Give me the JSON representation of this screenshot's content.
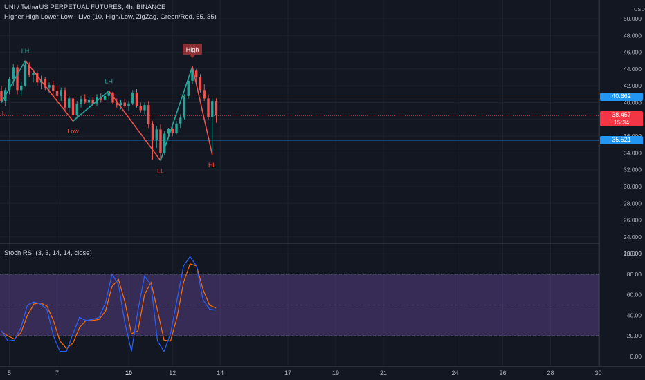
{
  "header": {
    "symbol": "UNI / TetherUS PERPETUAL FUTURES, 4h, BINANCE",
    "indicator": "Higher High Lower Low - Live (10, High/Low, ZigZag, Green/Red, 65, 35)"
  },
  "price_axis": {
    "unit": "USDT",
    "ticks": [
      "50.000",
      "48.000",
      "46.000",
      "44.000",
      "42.000",
      "40.000",
      "38.000",
      "36.000",
      "34.000",
      "32.000",
      "30.000",
      "28.000",
      "26.000",
      "24.000",
      "22.000"
    ],
    "tick_values": [
      50,
      48,
      46,
      44,
      42,
      40,
      38,
      36,
      34,
      32,
      30,
      28,
      26,
      24,
      22
    ],
    "tags": [
      {
        "label": "40.662",
        "value": 40.662,
        "color": "#2196f3"
      },
      {
        "label": "38.457",
        "sub": "15:34",
        "value": 38.457,
        "color": "#f23645"
      },
      {
        "label": "35.521",
        "value": 35.521,
        "color": "#2196f3"
      }
    ]
  },
  "lines": {
    "resistance": 40.662,
    "support": 35.521,
    "last_price": 38.457
  },
  "time_axis": {
    "labels": [
      {
        "text": "5",
        "bold": false,
        "i": 2
      },
      {
        "text": "7",
        "bold": false,
        "i": 14
      },
      {
        "text": "10",
        "bold": true,
        "i": 32
      },
      {
        "text": "12",
        "bold": false,
        "i": 43
      },
      {
        "text": "14",
        "bold": false,
        "i": 55
      },
      {
        "text": "17",
        "bold": false,
        "i": 72
      },
      {
        "text": "19",
        "bold": false,
        "i": 84
      },
      {
        "text": "21",
        "bold": false,
        "i": 96
      },
      {
        "text": "24",
        "bold": false,
        "i": 114
      },
      {
        "text": "26",
        "bold": false,
        "i": 126
      },
      {
        "text": "28",
        "bold": false,
        "i": 138
      },
      {
        "text": "30",
        "bold": false,
        "i": 150
      }
    ]
  },
  "zigzag": {
    "green": "#26a69a",
    "red": "#ef5350",
    "points": [
      {
        "i": 0,
        "v": 40.0,
        "label": "HL",
        "pos": "below",
        "color": "#ef5350",
        "badge": false
      },
      {
        "i": 6,
        "v": 45.0,
        "label": "LH",
        "pos": "above",
        "color": "#26a69a",
        "badge": false
      },
      {
        "i": 18,
        "v": 37.8,
        "label": "Low",
        "pos": "below",
        "color": "#ef5350",
        "badge": false
      },
      {
        "i": 27,
        "v": 41.4,
        "label": "LH",
        "pos": "above",
        "color": "#26a69a",
        "badge": false
      },
      {
        "i": 40,
        "v": 33.1,
        "label": "LL",
        "pos": "below",
        "color": "#ef5350",
        "badge": false
      },
      {
        "i": 48,
        "v": 44.3,
        "label": "High",
        "pos": "above",
        "color": "#ef5350",
        "badge": true
      },
      {
        "i": 53,
        "v": 33.8,
        "label": "HL",
        "pos": "below",
        "color": "#ef5350",
        "badge": false
      }
    ]
  },
  "candles": [
    [
      41.4,
      42.0,
      40.0,
      40.2
    ],
    [
      40.2,
      41.8,
      39.6,
      41.5
    ],
    [
      41.5,
      43.0,
      41.0,
      42.8
    ],
    [
      42.8,
      44.6,
      42.0,
      44.2
    ],
    [
      44.2,
      44.5,
      41.0,
      41.5
    ],
    [
      41.5,
      42.5,
      40.8,
      42.0
    ],
    [
      42.0,
      45.0,
      41.9,
      44.5
    ],
    [
      44.5,
      44.8,
      43.0,
      43.3
    ],
    [
      43.3,
      44.0,
      42.4,
      43.5
    ],
    [
      43.5,
      43.8,
      42.0,
      42.4
    ],
    [
      42.4,
      43.2,
      41.6,
      42.8
    ],
    [
      42.8,
      43.0,
      41.5,
      41.8
    ],
    [
      41.8,
      42.4,
      41.2,
      42.1
    ],
    [
      42.1,
      42.6,
      41.0,
      41.4
    ],
    [
      41.4,
      42.0,
      40.5,
      40.8
    ],
    [
      40.8,
      41.8,
      40.2,
      41.5
    ],
    [
      41.5,
      41.8,
      39.0,
      39.4
    ],
    [
      39.4,
      40.8,
      38.8,
      40.5
    ],
    [
      40.5,
      40.8,
      37.8,
      38.5
    ],
    [
      38.5,
      40.2,
      38.2,
      39.8
    ],
    [
      39.8,
      40.8,
      39.4,
      40.4
    ],
    [
      40.4,
      41.0,
      39.8,
      40.0
    ],
    [
      40.0,
      40.6,
      39.4,
      40.3
    ],
    [
      40.3,
      40.7,
      39.6,
      39.9
    ],
    [
      39.9,
      41.0,
      39.6,
      40.7
    ],
    [
      40.7,
      41.1,
      40.0,
      40.3
    ],
    [
      40.3,
      41.0,
      39.8,
      40.8
    ],
    [
      40.8,
      41.4,
      40.4,
      41.2
    ],
    [
      41.2,
      41.3,
      39.8,
      40.0
    ],
    [
      40.0,
      40.5,
      39.4,
      39.7
    ],
    [
      39.7,
      40.3,
      39.2,
      40.0
    ],
    [
      40.0,
      40.4,
      39.4,
      39.6
    ],
    [
      39.6,
      40.2,
      39.0,
      39.9
    ],
    [
      39.9,
      41.5,
      39.7,
      41.2
    ],
    [
      41.2,
      41.6,
      39.4,
      39.6
    ],
    [
      39.6,
      40.0,
      38.8,
      39.1
    ],
    [
      39.1,
      40.0,
      38.6,
      39.7
    ],
    [
      39.7,
      40.2,
      37.0,
      37.4
    ],
    [
      37.4,
      37.8,
      33.2,
      35.5
    ],
    [
      35.5,
      37.2,
      34.6,
      36.8
    ],
    [
      36.8,
      37.4,
      33.1,
      34.0
    ],
    [
      34.0,
      36.6,
      33.8,
      36.3
    ],
    [
      36.3,
      37.0,
      35.8,
      36.9
    ],
    [
      36.9,
      37.4,
      36.0,
      36.4
    ],
    [
      36.4,
      37.8,
      36.2,
      37.5
    ],
    [
      37.5,
      38.6,
      37.0,
      38.2
    ],
    [
      38.2,
      41.0,
      38.0,
      40.8
    ],
    [
      40.8,
      42.9,
      40.5,
      42.6
    ],
    [
      42.6,
      44.3,
      42.2,
      43.8
    ],
    [
      43.8,
      44.0,
      42.5,
      43.0
    ],
    [
      43.0,
      43.4,
      41.2,
      41.5
    ],
    [
      41.5,
      42.2,
      40.2,
      40.5
    ],
    [
      40.5,
      41.0,
      38.0,
      38.3
    ],
    [
      38.3,
      40.5,
      33.8,
      40.2
    ],
    [
      40.2,
      40.5,
      37.6,
      38.457
    ]
  ],
  "stoch_rsi": {
    "title": "Stoch RSI (3, 3, 14, 14, close)",
    "ticks": [
      "100.00",
      "80.00",
      "60.00",
      "40.00",
      "20.00",
      "0.00"
    ],
    "tick_values": [
      100,
      80,
      60,
      40,
      20,
      0
    ],
    "band_upper": 80,
    "band_lower": 20,
    "k_color": "#2962ff",
    "d_color": "#ff6d00",
    "band_color": "#7e57c2",
    "k": [
      25,
      15,
      16,
      28,
      50,
      53,
      51,
      46,
      20,
      5,
      5,
      22,
      38,
      35,
      36,
      38,
      52,
      80,
      70,
      32,
      5,
      45,
      78,
      70,
      15,
      5,
      22,
      55,
      88,
      97,
      88,
      55,
      46,
      45
    ],
    "d": [
      24,
      20,
      17,
      23,
      40,
      51,
      52,
      49,
      35,
      15,
      8,
      13,
      28,
      35,
      35,
      36,
      44,
      68,
      75,
      53,
      22,
      25,
      60,
      72,
      45,
      16,
      15,
      38,
      72,
      90,
      88,
      65,
      50,
      47
    ]
  }
}
